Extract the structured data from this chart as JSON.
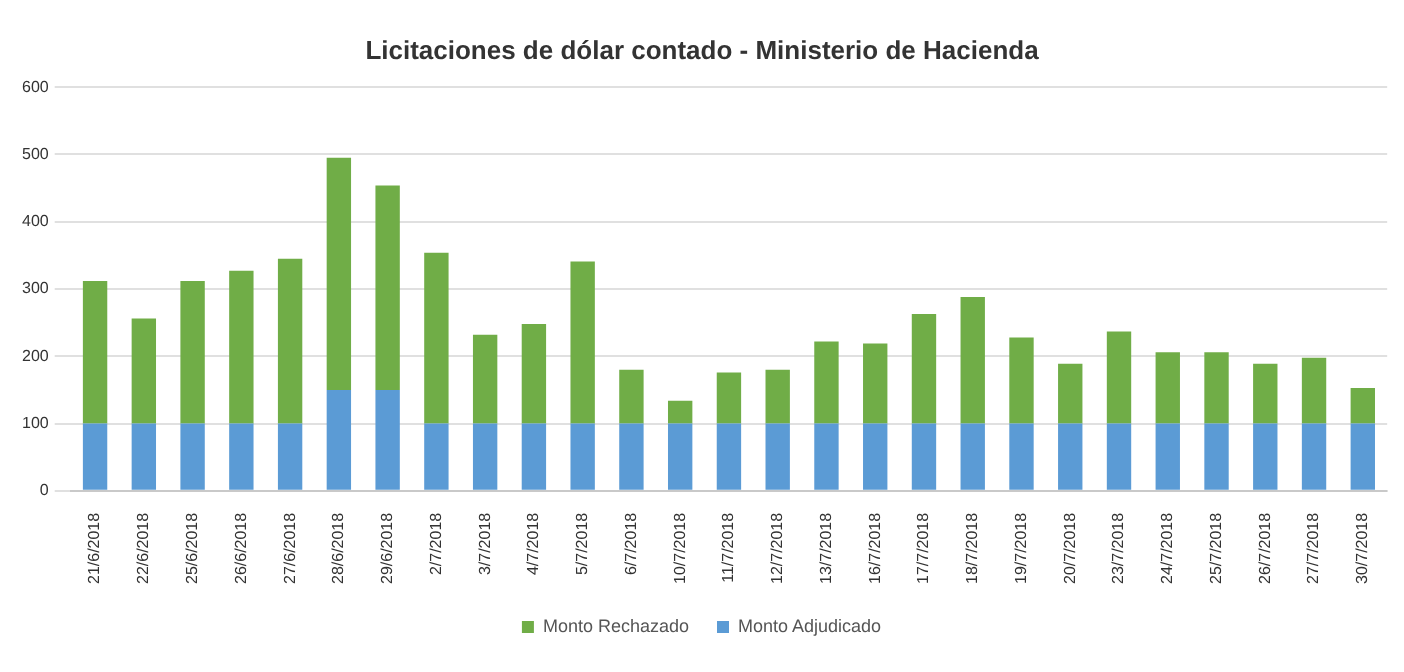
{
  "chart_data": {
    "type": "bar",
    "title": "Licitaciones de dólar contado - Ministerio de Hacienda",
    "stacked": true,
    "categories": [
      "21/6/2018",
      "22/6/2018",
      "25/6/2018",
      "26/6/2018",
      "27/6/2018",
      "28/6/2018",
      "29/6/2018",
      "2/7/2018",
      "3/7/2018",
      "4/7/2018",
      "5/7/2018",
      "6/7/2018",
      "10/7/2018",
      "11/7/2018",
      "12/7/2018",
      "13/7/2018",
      "16/7/2018",
      "17/7/2018",
      "18/7/2018",
      "19/7/2018",
      "20/7/2018",
      "23/7/2018",
      "24/7/2018",
      "25/7/2018",
      "26/7/2018",
      "27/7/2018",
      "30/7/2018"
    ],
    "series": [
      {
        "name": "Monto Adjudicado",
        "color": "#5b9bd5",
        "values": [
          100,
          100,
          100,
          100,
          100,
          150,
          150,
          100,
          100,
          100,
          100,
          100,
          100,
          100,
          100,
          100,
          100,
          100,
          100,
          100,
          100,
          100,
          100,
          100,
          100,
          100,
          100
        ]
      },
      {
        "name": "Monto Rechazado",
        "color": "#70ad47",
        "values": [
          212,
          156,
          212,
          227,
          245,
          345,
          304,
          254,
          132,
          148,
          241,
          80,
          34,
          76,
          80,
          122,
          119,
          163,
          188,
          128,
          89,
          137,
          106,
          106,
          89,
          98,
          53
        ]
      }
    ],
    "ylim": [
      0,
      600
    ],
    "yticks": [
      0,
      100,
      200,
      300,
      400,
      500,
      600
    ],
    "grid": "y",
    "legend": "bottom"
  }
}
